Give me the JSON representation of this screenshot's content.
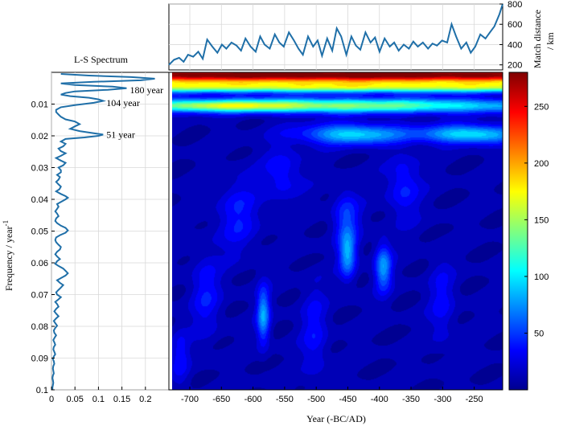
{
  "chart_data": [
    {
      "type": "line",
      "panel": "top-series",
      "ylabel_line1": "Match distance",
      "ylabel_line2": "/ km",
      "xlim": [
        -728,
        -205
      ],
      "ylim": [
        150,
        800
      ],
      "yticks": [
        200,
        400,
        600,
        800
      ],
      "grid": true,
      "line_color": "#1f6fa8",
      "series": [
        {
          "x": [
            -728,
            -720,
            -712,
            -705,
            -698,
            -690,
            -682,
            -675,
            -668,
            -660,
            -652,
            -645,
            -638,
            -630,
            -622,
            -615,
            -608,
            -600,
            -592,
            -585,
            -578,
            -570,
            -562,
            -555,
            -548,
            -540,
            -532,
            -525,
            -518,
            -510,
            -502,
            -495,
            -488,
            -480,
            -472,
            -465,
            -458,
            -450,
            -442,
            -435,
            -428,
            -420,
            -412,
            -405,
            -398,
            -390,
            -382,
            -375,
            -368,
            -360,
            -352,
            -345,
            -338,
            -330,
            -322,
            -315,
            -308,
            -300,
            -292,
            -285,
            -278,
            -270,
            -262,
            -255,
            -248,
            -240,
            -232,
            -225,
            -218,
            -210,
            -205
          ],
          "values": [
            200,
            250,
            270,
            230,
            300,
            280,
            330,
            260,
            450,
            380,
            320,
            400,
            360,
            420,
            390,
            340,
            460,
            380,
            330,
            480,
            400,
            360,
            500,
            420,
            380,
            520,
            440,
            360,
            300,
            480,
            380,
            440,
            290,
            460,
            340,
            560,
            480,
            300,
            480,
            390,
            350,
            520,
            420,
            470,
            330,
            460,
            380,
            420,
            340,
            400,
            360,
            430,
            380,
            420,
            360,
            410,
            390,
            440,
            420,
            600,
            480,
            360,
            420,
            320,
            380,
            500,
            460,
            520,
            580,
            700,
            800
          ]
        }
      ]
    },
    {
      "type": "line",
      "panel": "side-spectrum",
      "title": "L-S Spectrum",
      "xlim": [
        0,
        0.25
      ],
      "ylim": [
        0.1,
        0.0
      ],
      "xticks": [
        0,
        0.05,
        0.1,
        0.15,
        0.2
      ],
      "xtick_labels": [
        "0",
        "0.05",
        "0.1",
        "0.15",
        "0.2"
      ],
      "yticks": [
        0.01,
        0.02,
        0.03,
        0.04,
        0.05,
        0.06,
        0.07,
        0.08,
        0.09,
        0.1
      ],
      "ytick_labels": [
        "0.01",
        "0.02",
        "0.03",
        "0.04",
        "0.05",
        "0.06",
        "0.07",
        "0.08",
        "0.09",
        "0.1"
      ],
      "ylabel": "Frequency / year",
      "ylabel_sup": "-1",
      "grid": true,
      "line_color": "#1f6fa8",
      "series": [
        {
          "freq": [
            0.0005,
            0.001,
            0.0015,
            0.002,
            0.0025,
            0.003,
            0.0035,
            0.004,
            0.0045,
            0.005,
            0.0055,
            0.006,
            0.0065,
            0.007,
            0.0075,
            0.008,
            0.0085,
            0.009,
            0.0096,
            0.0103,
            0.011,
            0.0118,
            0.0125,
            0.0133,
            0.014,
            0.0148,
            0.0155,
            0.0163,
            0.017,
            0.0178,
            0.0185,
            0.0192,
            0.0196,
            0.02,
            0.0205,
            0.021,
            0.0218,
            0.0225,
            0.0233,
            0.024,
            0.0248,
            0.0255,
            0.0263,
            0.027,
            0.0278,
            0.0285,
            0.0293,
            0.03,
            0.0308,
            0.0315,
            0.0323,
            0.033,
            0.0338,
            0.0345,
            0.0353,
            0.036,
            0.0368,
            0.0375,
            0.0383,
            0.039,
            0.0395,
            0.04,
            0.0408,
            0.0415,
            0.0423,
            0.043,
            0.0438,
            0.0445,
            0.0453,
            0.046,
            0.0468,
            0.0475,
            0.0483,
            0.049,
            0.0498,
            0.0505,
            0.0513,
            0.052,
            0.0528,
            0.0535,
            0.0543,
            0.055,
            0.0558,
            0.0565,
            0.0573,
            0.058,
            0.0588,
            0.0595,
            0.0603,
            0.061,
            0.0618,
            0.0625,
            0.0633,
            0.064,
            0.0648,
            0.0655,
            0.0663,
            0.067,
            0.0678,
            0.0685,
            0.0693,
            0.07,
            0.0708,
            0.0715,
            0.0723,
            0.073,
            0.0738,
            0.0745,
            0.0753,
            0.076,
            0.0768,
            0.0775,
            0.0783,
            0.079,
            0.0798,
            0.0805,
            0.0813,
            0.082,
            0.0828,
            0.0835,
            0.0843,
            0.085,
            0.0858,
            0.0865,
            0.0873,
            0.088,
            0.0888,
            0.0895,
            0.0903,
            0.091,
            0.0918,
            0.0925,
            0.0933,
            0.094,
            0.0948,
            0.0955,
            0.0963,
            0.097,
            0.0978,
            0.0985,
            0.0993,
            0.1
          ],
          "power": [
            0.02,
            0.08,
            0.17,
            0.22,
            0.19,
            0.09,
            0.02,
            0.05,
            0.13,
            0.16,
            0.12,
            0.05,
            0.03,
            0.02,
            0.04,
            0.08,
            0.1,
            0.11,
            0.09,
            0.05,
            0.02,
            0.01,
            0.01,
            0.015,
            0.02,
            0.03,
            0.05,
            0.06,
            0.05,
            0.04,
            0.06,
            0.09,
            0.11,
            0.1,
            0.07,
            0.03,
            0.02,
            0.03,
            0.025,
            0.015,
            0.02,
            0.03,
            0.02,
            0.01,
            0.02,
            0.03,
            0.025,
            0.015,
            0.02,
            0.02,
            0.012,
            0.018,
            0.015,
            0.01,
            0.015,
            0.02,
            0.017,
            0.01,
            0.02,
            0.03,
            0.035,
            0.03,
            0.02,
            0.012,
            0.015,
            0.012,
            0.008,
            0.012,
            0.015,
            0.01,
            0.008,
            0.012,
            0.02,
            0.03,
            0.035,
            0.03,
            0.018,
            0.01,
            0.008,
            0.01,
            0.015,
            0.02,
            0.018,
            0.012,
            0.008,
            0.012,
            0.018,
            0.012,
            0.008,
            0.015,
            0.025,
            0.03,
            0.035,
            0.03,
            0.02,
            0.012,
            0.018,
            0.025,
            0.02,
            0.015,
            0.01,
            0.012,
            0.02,
            0.015,
            0.008,
            0.012,
            0.015,
            0.01,
            0.006,
            0.01,
            0.015,
            0.01,
            0.005,
            0.008,
            0.012,
            0.008,
            0.005,
            0.006,
            0.01,
            0.007,
            0.004,
            0.006,
            0.008,
            0.005,
            0.004,
            0.006,
            0.008,
            0.005,
            0.003,
            0.005,
            0.006,
            0.004,
            0.003,
            0.004,
            0.005,
            0.003,
            0.002,
            0.003,
            0.004,
            0.003,
            0.002,
            0.002
          ]
        }
      ],
      "annotations": [
        {
          "text": "180 year",
          "freq": 0.0056,
          "power": 0.16
        },
        {
          "text": "104 year",
          "freq": 0.0096,
          "power": 0.11
        },
        {
          "text": "51 year",
          "freq": 0.0196,
          "power": 0.11
        }
      ]
    },
    {
      "type": "heatmap",
      "panel": "main-wavelet",
      "xlabel": "Year (-BC/AD)",
      "xlim": [
        -728,
        -205
      ],
      "ylim": [
        0.1,
        0.0
      ],
      "xticks": [
        -700,
        -650,
        -600,
        -550,
        -500,
        -450,
        -400,
        -350,
        -300,
        -250
      ],
      "xtick_labels": [
        "-700",
        "-650",
        "-600",
        "-550",
        "-500",
        "-450",
        "-400",
        "-350",
        "-300",
        "-250"
      ],
      "colormap": "jet",
      "colorbar_range": [
        0,
        280
      ],
      "colorbar_ticks": [
        50,
        100,
        150,
        200,
        250
      ],
      "features": [
        {
          "year": -470,
          "freq": 0.0008,
          "sx": 900,
          "sy": 0.0018,
          "amp": 280
        },
        {
          "year": -470,
          "freq": 0.0047,
          "sx": 900,
          "sy": 0.0012,
          "amp": 130
        },
        {
          "year": -460,
          "freq": 0.0105,
          "sx": 230,
          "sy": 0.0016,
          "amp": 125
        },
        {
          "year": -660,
          "freq": 0.0105,
          "sx": 90,
          "sy": 0.0012,
          "amp": 70
        },
        {
          "year": -440,
          "freq": 0.0195,
          "sx": 55,
          "sy": 0.0022,
          "amp": 85
        },
        {
          "year": -255,
          "freq": 0.0195,
          "sx": 55,
          "sy": 0.002,
          "amp": 90
        },
        {
          "year": -580,
          "freq": 0.0765,
          "sx": 7,
          "sy": 0.006,
          "amp": 68
        },
        {
          "year": -448,
          "freq": 0.0575,
          "sx": 9,
          "sy": 0.005,
          "amp": 66
        },
        {
          "year": -392,
          "freq": 0.0615,
          "sx": 9,
          "sy": 0.005,
          "amp": 66
        },
        {
          "year": -450,
          "freq": 0.046,
          "sx": 14,
          "sy": 0.006,
          "amp": 38
        },
        {
          "year": -620,
          "freq": 0.045,
          "sx": 22,
          "sy": 0.008,
          "amp": 28
        },
        {
          "year": -360,
          "freq": 0.036,
          "sx": 18,
          "sy": 0.007,
          "amp": 30
        },
        {
          "year": -550,
          "freq": 0.032,
          "sx": 22,
          "sy": 0.006,
          "amp": 26
        },
        {
          "year": -670,
          "freq": 0.07,
          "sx": 16,
          "sy": 0.009,
          "amp": 26
        },
        {
          "year": -500,
          "freq": 0.082,
          "sx": 14,
          "sy": 0.01,
          "amp": 24
        },
        {
          "year": -300,
          "freq": 0.072,
          "sx": 14,
          "sy": 0.009,
          "amp": 22
        },
        {
          "year": -710,
          "freq": 0.09,
          "sx": 10,
          "sy": 0.006,
          "amp": 24
        }
      ],
      "background_level": 12
    }
  ]
}
